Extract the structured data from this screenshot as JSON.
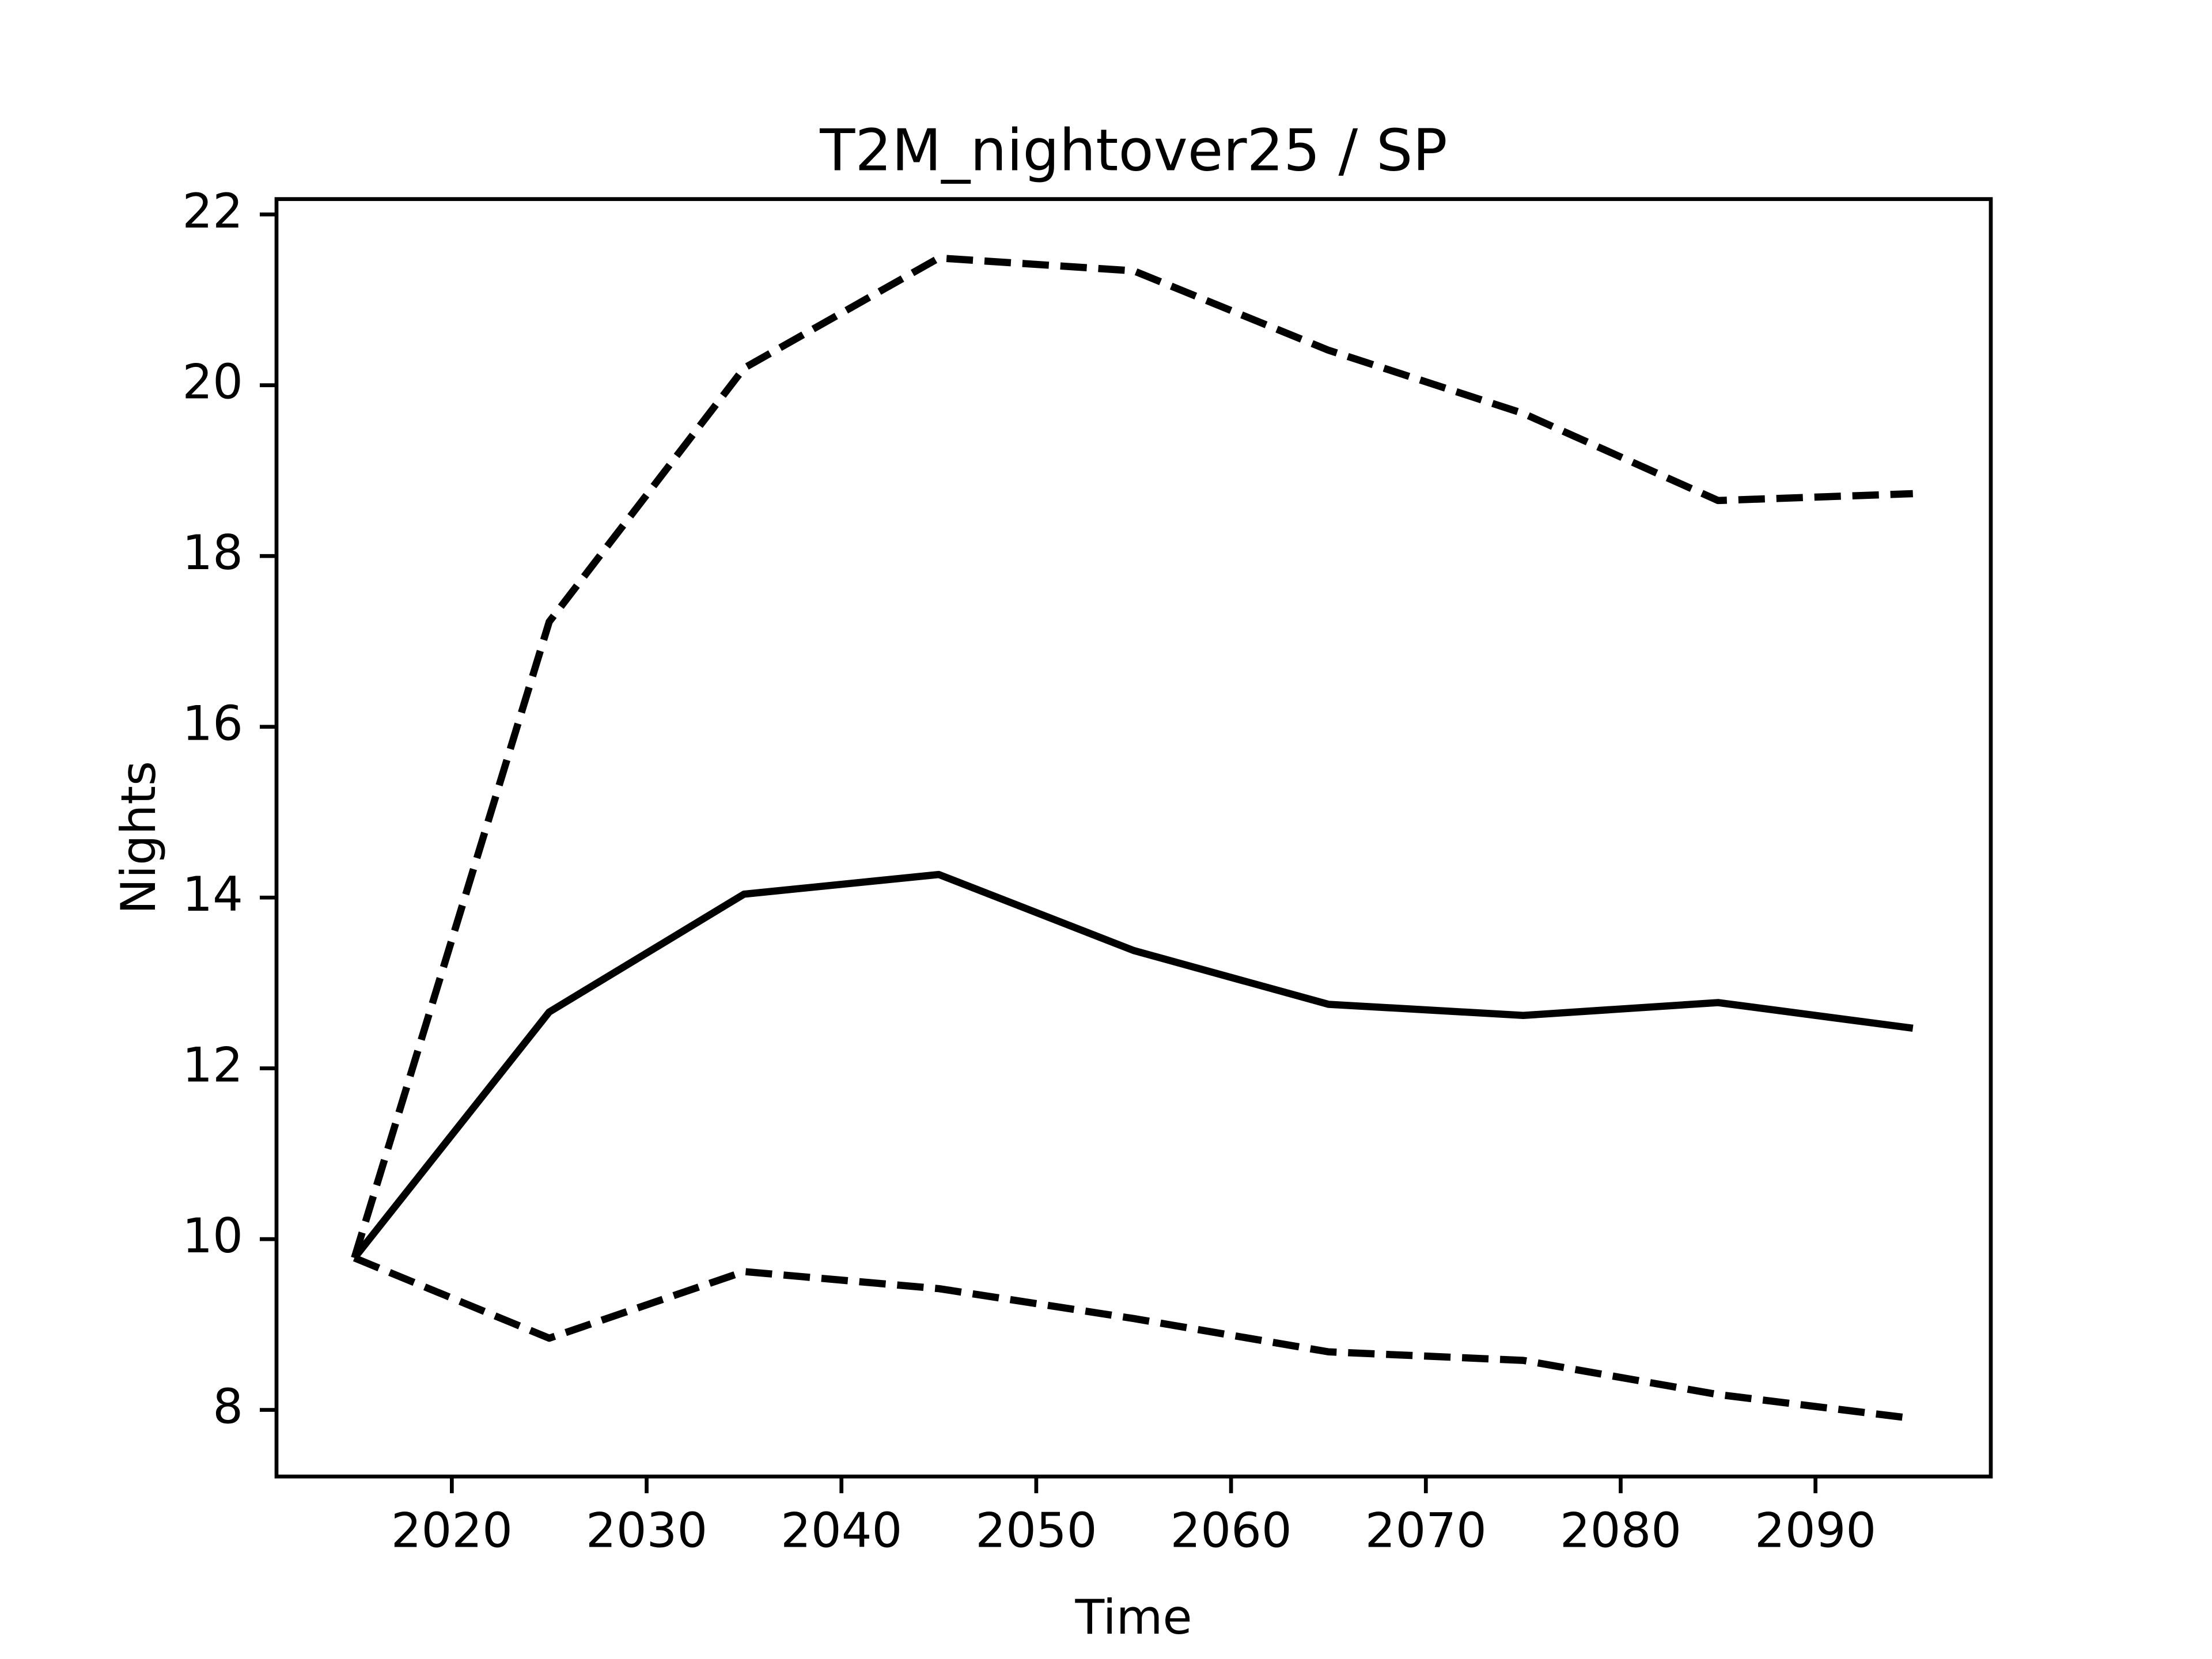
{
  "chart_data": {
    "type": "line",
    "title": "T2M_nightover25 / SP",
    "xlabel": "Time",
    "ylabel": "Nights",
    "x": [
      2015,
      2025,
      2035,
      2045,
      2055,
      2065,
      2075,
      2085,
      2095
    ],
    "series": [
      {
        "color": "#000000",
        "linestyle": "dashed",
        "values": [
          9.78,
          17.23,
          20.2,
          21.49,
          21.34,
          20.41,
          19.67,
          18.65,
          18.73
        ]
      },
      {
        "color": "#000000",
        "linestyle": "solid",
        "values": [
          9.78,
          12.66,
          14.04,
          14.27,
          13.38,
          12.75,
          12.62,
          12.77,
          12.47
        ]
      },
      {
        "color": "#000000",
        "linestyle": "dashed",
        "values": [
          9.78,
          8.84,
          9.62,
          9.42,
          9.07,
          8.68,
          8.58,
          8.18,
          7.9
        ]
      }
    ],
    "xlim": [
      2011,
      2099
    ],
    "ylim": [
      7.22,
      22.18
    ],
    "xticks": [
      2020,
      2030,
      2040,
      2050,
      2060,
      2070,
      2080,
      2090
    ],
    "yticks": [
      8,
      10,
      12,
      14,
      16,
      18,
      20,
      22
    ],
    "grid": false
  }
}
